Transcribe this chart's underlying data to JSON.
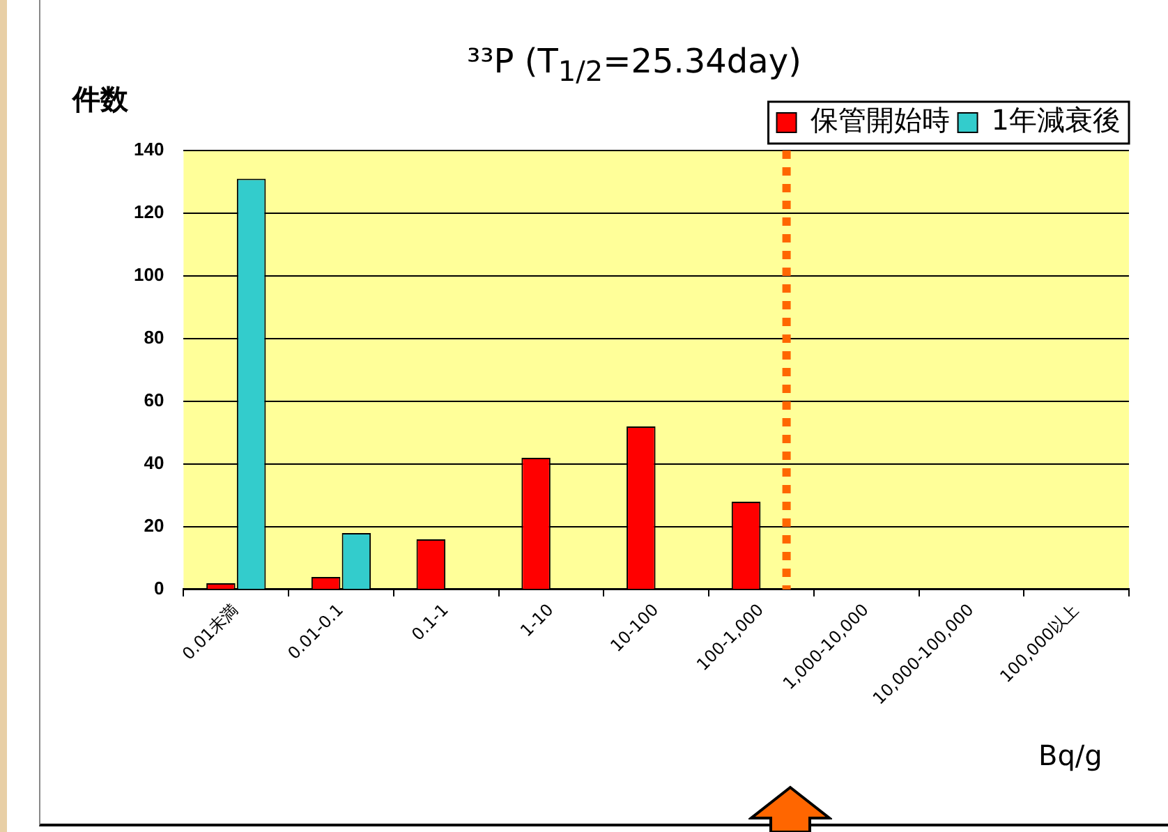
{
  "chart_data": {
    "type": "bar",
    "title": "³³P (T$_{1/2}$=25.34day)",
    "ylabel": "件数",
    "xlabel": "Bq/g",
    "categories": [
      "0.01未満",
      "0.01-0.1",
      "0.1-1",
      "1-10",
      "10-100",
      "100-1,000",
      "1,000-10,000",
      "10,000-100,000",
      "100,000以上"
    ],
    "series": [
      {
        "name": "保管開始時",
        "color": "#ff0000",
        "values": [
          2,
          4,
          16,
          42,
          52,
          28,
          0,
          0,
          0
        ]
      },
      {
        "name": "1年減衰後",
        "color": "#33cccc",
        "values": [
          131,
          18,
          0,
          0,
          0,
          0,
          0,
          0,
          0
        ]
      }
    ],
    "ylim": [
      0,
      140
    ],
    "yticks": [
      0,
      20,
      40,
      60,
      80,
      100,
      120,
      140
    ],
    "grid": "y",
    "legend": "top right",
    "ref_lines": [
      {
        "axis": "x",
        "value": "100-1,000",
        "color": "#ff6600",
        "line_style": "dotted"
      }
    ]
  }
}
